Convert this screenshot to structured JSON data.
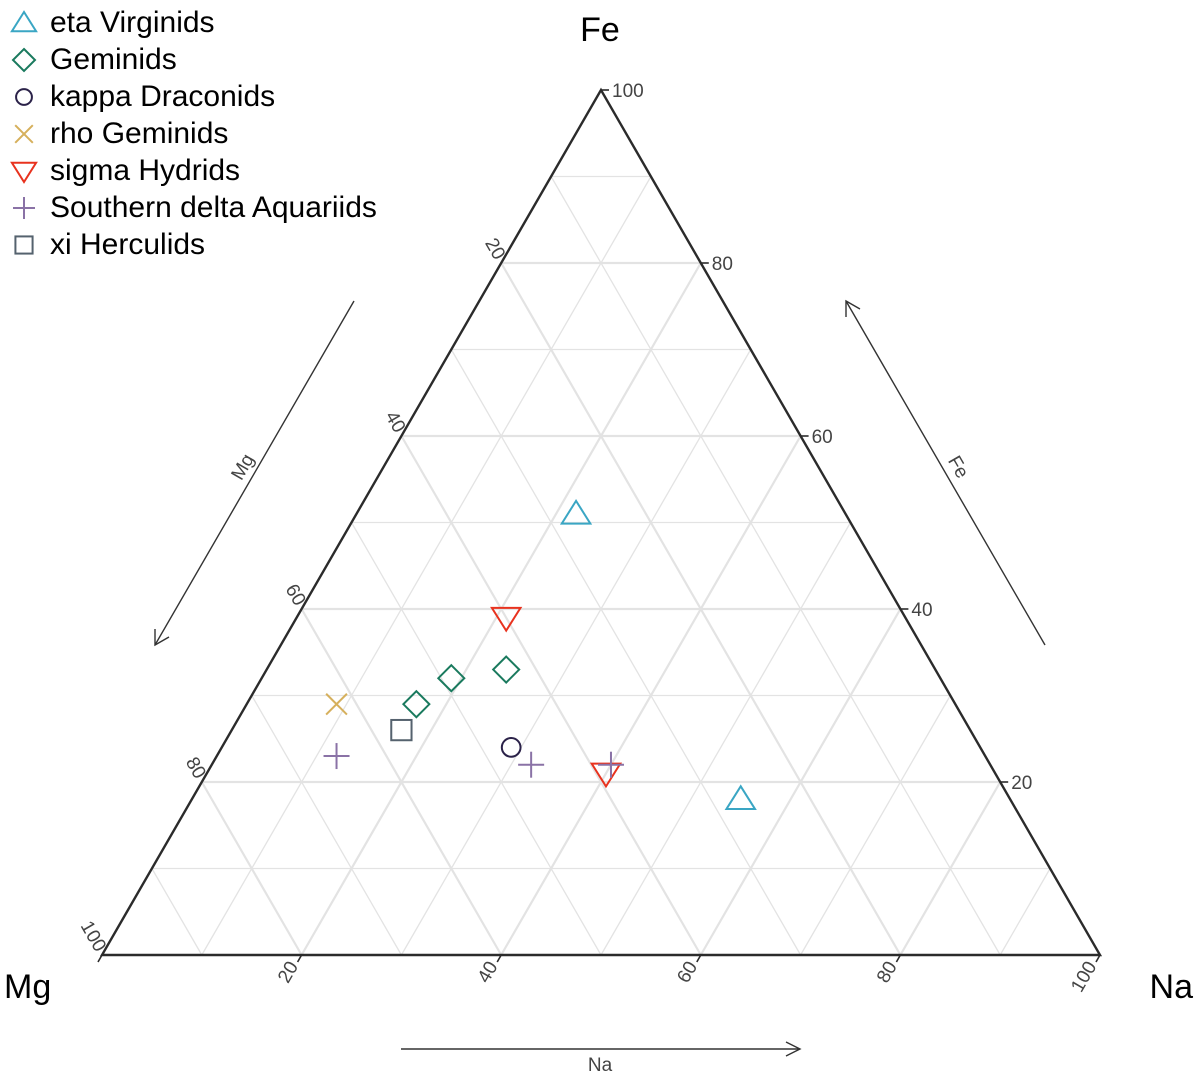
{
  "chart_data": {
    "type": "ternary-scatter",
    "vertex_labels": {
      "top": "Fe",
      "left": "Mg",
      "right": "Na"
    },
    "axis_labels": {
      "left_side": "Mg",
      "right_side": "Fe",
      "bottom": "Na"
    },
    "ticks": {
      "fe": [
        "20",
        "40",
        "60",
        "80",
        "100"
      ],
      "mg": [
        "20",
        "40",
        "60",
        "80",
        "100"
      ],
      "na": [
        "20",
        "40",
        "60",
        "80",
        "100"
      ]
    },
    "grid": true,
    "legend_position": "top-left",
    "series": [
      {
        "name": "eta Virginids",
        "marker": "triangle-up",
        "color": "#3aa6c4",
        "points": [
          {
            "fe": 51,
            "na": 22,
            "mg": 27
          },
          {
            "fe": 18,
            "na": 55,
            "mg": 27
          }
        ]
      },
      {
        "name": "Geminids",
        "marker": "diamond",
        "color": "#1a7a5e",
        "points": [
          {
            "fe": 32,
            "na": 19,
            "mg": 49
          },
          {
            "fe": 33,
            "na": 24,
            "mg": 43
          },
          {
            "fe": 29,
            "na": 17,
            "mg": 54
          }
        ]
      },
      {
        "name": "kappa Draconids",
        "marker": "circle",
        "color": "#2b2249",
        "points": [
          {
            "fe": 24,
            "na": 29,
            "mg": 47
          }
        ]
      },
      {
        "name": "rho Geminids",
        "marker": "x",
        "color": "#d6b05c",
        "points": [
          {
            "fe": 29,
            "na": 9,
            "mg": 62
          }
        ]
      },
      {
        "name": "sigma Hydrids",
        "marker": "triangle-down",
        "color": "#e8321e",
        "points": [
          {
            "fe": 39,
            "na": 21,
            "mg": 40
          },
          {
            "fe": 21,
            "na": 40,
            "mg": 39
          }
        ]
      },
      {
        "name": "Southern delta Aquariids",
        "marker": "plus",
        "color": "#8a72a6",
        "points": [
          {
            "fe": 23,
            "na": 12,
            "mg": 65
          },
          {
            "fe": 22,
            "na": 32,
            "mg": 46
          },
          {
            "fe": 22,
            "na": 40,
            "mg": 38
          }
        ]
      },
      {
        "name": "xi Herculids",
        "marker": "square",
        "color": "#55626e",
        "points": [
          {
            "fe": 26,
            "na": 17,
            "mg": 57
          }
        ]
      }
    ]
  }
}
